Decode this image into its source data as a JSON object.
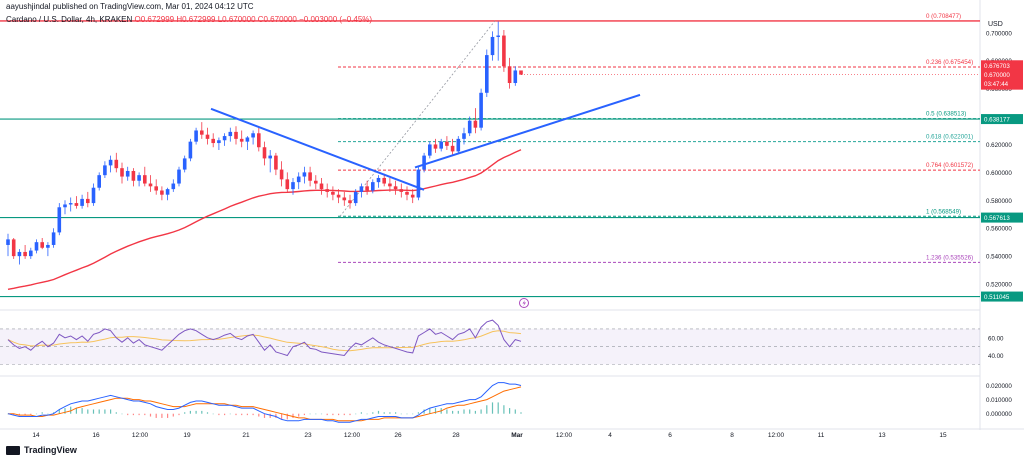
{
  "header": {
    "user_line": "aayushjindal published on TradingView.com, Mar 01, 2024 04:12 UTC",
    "symbol_line": "Cardano / U.S. Dollar, 4h, KRAKEN",
    "ohlc_line": "O0.672999 H0.672999 L0.670000 C0.670000 −0.003000 (−0.45%)"
  },
  "footer": {
    "brand": "TradingView"
  },
  "colors": {
    "up": "#089981",
    "down": "#f23645",
    "candle_up": "#2962ff",
    "candle_down": "#f23645",
    "ma": "#f23645",
    "trendline": "#2962ff",
    "support": "#089981",
    "fib": "#f23645",
    "rsi": "#7e57c2",
    "rsi_signal": "#f7c35c",
    "macd": "#2962ff",
    "macd_signal": "#ff6d00",
    "hist": "#26a69a"
  },
  "chart_data": {
    "type": "candlestick",
    "symbol": "Cardano / U.S. Dollar",
    "timeframe": "4h",
    "exchange": "KRAKEN",
    "price_axis": {
      "label": "USD",
      "ylim": [
        0.505,
        0.712
      ],
      "ticks": [
        "0.700000",
        "0.680000",
        "0.660000",
        "0.640000",
        "0.620000",
        "0.600000",
        "0.580000",
        "0.560000",
        "0.540000",
        "0.520000"
      ]
    },
    "time_axis": {
      "ticks": [
        "14",
        "16",
        "12:00",
        "19",
        "21",
        "23",
        "12:00",
        "26",
        "28",
        "Mar",
        "12:00",
        "4",
        "6",
        "8",
        "12:00",
        "11",
        "13",
        "15"
      ]
    },
    "fibonacci": [
      {
        "level": "0",
        "value": 0.708477,
        "label": "0 (0.708477)"
      },
      {
        "level": "0.236",
        "value": 0.675454,
        "label": "0.236 (0.675454)"
      },
      {
        "level": "0.5",
        "value": 0.638513,
        "label": "0.5 (0.638513)"
      },
      {
        "level": "0.618",
        "value": 0.622001,
        "label": "0.618 (0.622001)"
      },
      {
        "level": "0.764",
        "value": 0.601572,
        "label": "0.764 (0.601572)"
      },
      {
        "level": "1",
        "value": 0.568549,
        "label": "1 (0.568549)"
      },
      {
        "level": "1.236",
        "value": 0.535526,
        "label": "1.236 (0.535526)"
      }
    ],
    "horizontal_levels": [
      {
        "value": 0.638177,
        "label": "0.638177"
      },
      {
        "value": 0.567613,
        "label": "0.567613"
      },
      {
        "value": 0.511045,
        "label": "0.511045"
      }
    ],
    "price_labels": {
      "last_top": "0.676703",
      "last_price": "0.670000",
      "countdown": "03:47:44",
      "next": "0.660000"
    },
    "candles_ohlc": [
      [
        0.548,
        0.556,
        0.54,
        0.552
      ],
      [
        0.552,
        0.553,
        0.538,
        0.54
      ],
      [
        0.54,
        0.545,
        0.534,
        0.543
      ],
      [
        0.543,
        0.548,
        0.538,
        0.54
      ],
      [
        0.54,
        0.546,
        0.538,
        0.544
      ],
      [
        0.544,
        0.552,
        0.542,
        0.55
      ],
      [
        0.55,
        0.553,
        0.545,
        0.546
      ],
      [
        0.546,
        0.55,
        0.54,
        0.548
      ],
      [
        0.548,
        0.56,
        0.546,
        0.557
      ],
      [
        0.557,
        0.578,
        0.555,
        0.575
      ],
      [
        0.575,
        0.58,
        0.57,
        0.577
      ],
      [
        0.577,
        0.582,
        0.572,
        0.578
      ],
      [
        0.578,
        0.583,
        0.574,
        0.576
      ],
      [
        0.576,
        0.584,
        0.574,
        0.581
      ],
      [
        0.581,
        0.586,
        0.575,
        0.578
      ],
      [
        0.578,
        0.592,
        0.576,
        0.589
      ],
      [
        0.589,
        0.6,
        0.587,
        0.598
      ],
      [
        0.598,
        0.608,
        0.596,
        0.605
      ],
      [
        0.605,
        0.612,
        0.6,
        0.609
      ],
      [
        0.609,
        0.614,
        0.6,
        0.603
      ],
      [
        0.603,
        0.607,
        0.592,
        0.597
      ],
      [
        0.597,
        0.604,
        0.594,
        0.601
      ],
      [
        0.601,
        0.603,
        0.59,
        0.594
      ],
      [
        0.594,
        0.6,
        0.59,
        0.598
      ],
      [
        0.598,
        0.604,
        0.59,
        0.592
      ],
      [
        0.592,
        0.598,
        0.586,
        0.59
      ],
      [
        0.59,
        0.595,
        0.584,
        0.587
      ],
      [
        0.587,
        0.59,
        0.58,
        0.584
      ],
      [
        0.584,
        0.589,
        0.58,
        0.588
      ],
      [
        0.588,
        0.595,
        0.586,
        0.592
      ],
      [
        0.592,
        0.604,
        0.59,
        0.602
      ],
      [
        0.602,
        0.612,
        0.6,
        0.61
      ],
      [
        0.61,
        0.624,
        0.608,
        0.622
      ],
      [
        0.622,
        0.632,
        0.62,
        0.63
      ],
      [
        0.63,
        0.636,
        0.624,
        0.627
      ],
      [
        0.627,
        0.632,
        0.62,
        0.624
      ],
      [
        0.624,
        0.628,
        0.618,
        0.621
      ],
      [
        0.621,
        0.625,
        0.616,
        0.623
      ],
      [
        0.623,
        0.628,
        0.619,
        0.626
      ],
      [
        0.626,
        0.632,
        0.622,
        0.629
      ],
      [
        0.629,
        0.633,
        0.62,
        0.624
      ],
      [
        0.624,
        0.63,
        0.618,
        0.622
      ],
      [
        0.622,
        0.626,
        0.616,
        0.625
      ],
      [
        0.625,
        0.63,
        0.62,
        0.628
      ],
      [
        0.628,
        0.632,
        0.615,
        0.618
      ],
      [
        0.618,
        0.622,
        0.605,
        0.61
      ],
      [
        0.61,
        0.616,
        0.6,
        0.612
      ],
      [
        0.612,
        0.614,
        0.598,
        0.602
      ],
      [
        0.602,
        0.608,
        0.59,
        0.595
      ],
      [
        0.595,
        0.6,
        0.586,
        0.588
      ],
      [
        0.588,
        0.596,
        0.584,
        0.593
      ],
      [
        0.593,
        0.6,
        0.588,
        0.597
      ],
      [
        0.597,
        0.604,
        0.592,
        0.6
      ],
      [
        0.6,
        0.604,
        0.59,
        0.594
      ],
      [
        0.594,
        0.598,
        0.588,
        0.592
      ],
      [
        0.592,
        0.596,
        0.584,
        0.588
      ],
      [
        0.588,
        0.592,
        0.582,
        0.586
      ],
      [
        0.586,
        0.59,
        0.58,
        0.584
      ],
      [
        0.584,
        0.588,
        0.578,
        0.582
      ],
      [
        0.582,
        0.586,
        0.576,
        0.58
      ],
      [
        0.58,
        0.584,
        0.574,
        0.578
      ],
      [
        0.578,
        0.588,
        0.576,
        0.586
      ],
      [
        0.586,
        0.592,
        0.582,
        0.59
      ],
      [
        0.59,
        0.594,
        0.584,
        0.587
      ],
      [
        0.587,
        0.595,
        0.585,
        0.593
      ],
      [
        0.593,
        0.598,
        0.589,
        0.596
      ],
      [
        0.596,
        0.599,
        0.59,
        0.592
      ],
      [
        0.592,
        0.596,
        0.586,
        0.59
      ],
      [
        0.59,
        0.594,
        0.584,
        0.588
      ],
      [
        0.588,
        0.592,
        0.582,
        0.586
      ],
      [
        0.586,
        0.59,
        0.58,
        0.584
      ],
      [
        0.584,
        0.588,
        0.578,
        0.582
      ],
      [
        0.582,
        0.604,
        0.58,
        0.602
      ],
      [
        0.602,
        0.614,
        0.6,
        0.612
      ],
      [
        0.612,
        0.622,
        0.61,
        0.62
      ],
      [
        0.62,
        0.624,
        0.614,
        0.617
      ],
      [
        0.617,
        0.624,
        0.615,
        0.622
      ],
      [
        0.622,
        0.626,
        0.616,
        0.619
      ],
      [
        0.619,
        0.624,
        0.612,
        0.615
      ],
      [
        0.615,
        0.626,
        0.613,
        0.624
      ],
      [
        0.624,
        0.632,
        0.62,
        0.628
      ],
      [
        0.628,
        0.64,
        0.626,
        0.637
      ],
      [
        0.637,
        0.646,
        0.628,
        0.632
      ],
      [
        0.632,
        0.66,
        0.63,
        0.657
      ],
      [
        0.657,
        0.688,
        0.654,
        0.684
      ],
      [
        0.684,
        0.701,
        0.68,
        0.697
      ],
      [
        0.697,
        0.708,
        0.68,
        0.698
      ],
      [
        0.698,
        0.702,
        0.672,
        0.676
      ],
      [
        0.676,
        0.682,
        0.66,
        0.664
      ],
      [
        0.664,
        0.676,
        0.662,
        0.673
      ],
      [
        0.673,
        0.673,
        0.67,
        0.67
      ]
    ],
    "rsi": {
      "ticks": [
        "60.00",
        "40.00"
      ],
      "ylim": [
        18,
        88
      ],
      "values": [
        58,
        52,
        48,
        50,
        46,
        52,
        56,
        50,
        54,
        64,
        60,
        62,
        58,
        62,
        56,
        64,
        66,
        70,
        68,
        60,
        55,
        60,
        54,
        58,
        52,
        50,
        48,
        46,
        52,
        58,
        64,
        68,
        70,
        68,
        64,
        60,
        58,
        60,
        63,
        65,
        60,
        58,
        62,
        64,
        55,
        46,
        52,
        44,
        42,
        40,
        50,
        52,
        55,
        48,
        47,
        44,
        43,
        42,
        41,
        40,
        48,
        54,
        52,
        56,
        60,
        55,
        52,
        50,
        48,
        46,
        44,
        43,
        62,
        66,
        70,
        64,
        66,
        62,
        58,
        64,
        66,
        70,
        60,
        72,
        78,
        80,
        74,
        58,
        50,
        58,
        56
      ]
    },
    "macd": {
      "ticks": [
        "0.020000",
        "0.010000",
        "0.000000"
      ],
      "ylim": [
        -0.008,
        0.026
      ],
      "line": [
        0.0,
        -0.001,
        -0.002,
        -0.002,
        -0.002,
        -0.002,
        -0.001,
        -0.001,
        0.0,
        0.003,
        0.005,
        0.007,
        0.008,
        0.009,
        0.009,
        0.01,
        0.011,
        0.012,
        0.013,
        0.012,
        0.011,
        0.01,
        0.009,
        0.009,
        0.008,
        0.007,
        0.005,
        0.004,
        0.003,
        0.003,
        0.004,
        0.006,
        0.008,
        0.009,
        0.009,
        0.008,
        0.007,
        0.006,
        0.006,
        0.006,
        0.005,
        0.004,
        0.004,
        0.004,
        0.002,
        0.0,
        -0.001,
        -0.002,
        -0.004,
        -0.005,
        -0.005,
        -0.005,
        -0.004,
        -0.004,
        -0.004,
        -0.004,
        -0.005,
        -0.005,
        -0.006,
        -0.006,
        -0.006,
        -0.005,
        -0.004,
        -0.004,
        -0.003,
        -0.002,
        -0.002,
        -0.002,
        -0.002,
        -0.003,
        -0.003,
        -0.003,
        -0.001,
        0.002,
        0.004,
        0.005,
        0.006,
        0.007,
        0.007,
        0.008,
        0.009,
        0.01,
        0.01,
        0.012,
        0.016,
        0.02,
        0.022,
        0.022,
        0.021,
        0.021,
        0.02
      ],
      "signal": [
        0.0,
        0.0,
        -0.001,
        -0.001,
        -0.001,
        -0.002,
        -0.002,
        -0.001,
        -0.001,
        0.0,
        0.001,
        0.002,
        0.004,
        0.005,
        0.006,
        0.007,
        0.008,
        0.009,
        0.01,
        0.011,
        0.011,
        0.011,
        0.01,
        0.01,
        0.009,
        0.009,
        0.008,
        0.007,
        0.006,
        0.005,
        0.005,
        0.005,
        0.006,
        0.007,
        0.007,
        0.007,
        0.007,
        0.007,
        0.007,
        0.006,
        0.006,
        0.005,
        0.005,
        0.005,
        0.004,
        0.003,
        0.002,
        0.001,
        0.0,
        -0.001,
        -0.002,
        -0.003,
        -0.003,
        -0.004,
        -0.004,
        -0.004,
        -0.004,
        -0.004,
        -0.005,
        -0.005,
        -0.005,
        -0.005,
        -0.005,
        -0.004,
        -0.004,
        -0.004,
        -0.003,
        -0.003,
        -0.003,
        -0.003,
        -0.003,
        -0.003,
        -0.002,
        -0.001,
        0.0,
        0.001,
        0.002,
        0.004,
        0.005,
        0.006,
        0.006,
        0.007,
        0.008,
        0.009,
        0.01,
        0.012,
        0.014,
        0.016,
        0.017,
        0.018,
        0.019
      ]
    }
  }
}
